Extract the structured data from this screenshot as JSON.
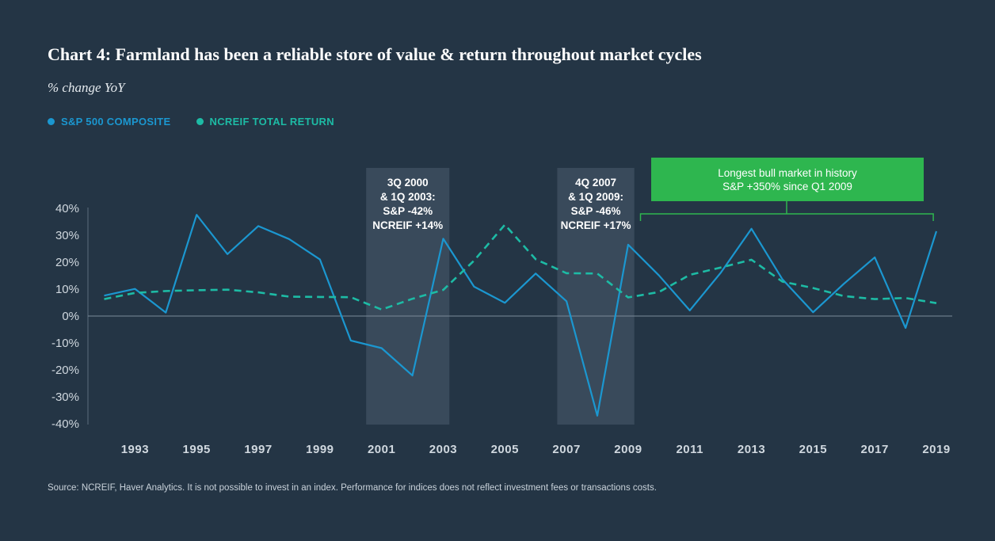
{
  "title": "Chart 4: Farmland has been a reliable store of value & return throughout market cycles",
  "subtitle": "% change YoY",
  "colors": {
    "background": "#243545",
    "sp500": "#1b97d0",
    "ncreif": "#1dbba5",
    "highlight": "#394a5b",
    "bull": "#2eb64f"
  },
  "source": "Source: NCREIF, Haver Analytics. It is not possible to invest in an index. Performance for indices does not reflect investment fees or transactions costs.",
  "annotations": {
    "dotcom": [
      "3Q 2000",
      "& 1Q 2003:",
      "S&P -42%",
      "NCREIF +14%"
    ],
    "gfc": [
      "4Q 2007",
      "& 1Q 2009:",
      "S&P -46%",
      "NCREIF +17%"
    ],
    "bull": [
      "Longest bull market in history",
      "S&P +350% since Q1 2009"
    ]
  },
  "chart_data": {
    "type": "line",
    "title": "Chart 4: Farmland has been a reliable store of value & return throughout market cycles",
    "ylabel": "% change YoY",
    "ylim": [
      -40,
      40
    ],
    "yticks": [
      "40%",
      "30%",
      "20%",
      "10%",
      "0%",
      "-10%",
      "-20%",
      "-30%",
      "-40%"
    ],
    "ytick_values": [
      40,
      30,
      20,
      10,
      0,
      -10,
      -20,
      -30,
      -40
    ],
    "xlim": [
      1992,
      2019
    ],
    "xtick_labels": [
      "1993",
      "1995",
      "1997",
      "1999",
      "2001",
      "2003",
      "2005",
      "2007",
      "2009",
      "2011",
      "2013",
      "2015",
      "2017",
      "2019"
    ],
    "xtick_values": [
      1993,
      1995,
      1997,
      1999,
      2001,
      2003,
      2005,
      2007,
      2009,
      2011,
      2013,
      2015,
      2017,
      2019
    ],
    "x": [
      1992,
      1993,
      1994,
      1995,
      1996,
      1997,
      1998,
      1999,
      2000,
      2001,
      2002,
      2003,
      2004,
      2005,
      2006,
      2007,
      2008,
      2009,
      2010,
      2011,
      2012,
      2013,
      2014,
      2015,
      2016,
      2017,
      2018,
      2019
    ],
    "series": [
      {
        "name": "S&P 500 COMPOSITE",
        "style": "solid",
        "values": [
          7.6,
          10.1,
          1.3,
          37.6,
          23.0,
          33.4,
          28.6,
          21.0,
          -9.1,
          -11.9,
          -22.1,
          28.7,
          10.9,
          4.9,
          15.8,
          5.5,
          -37.0,
          26.5,
          15.1,
          2.1,
          16.0,
          32.4,
          13.7,
          1.4,
          12.0,
          21.8,
          -4.4,
          31.5
        ]
      },
      {
        "name": "NCREIF TOTAL RETURN",
        "style": "dashed",
        "values": [
          6.3,
          8.6,
          9.3,
          9.6,
          9.8,
          8.8,
          7.2,
          7.1,
          7.0,
          2.4,
          6.4,
          9.7,
          20.6,
          33.9,
          21.1,
          15.9,
          15.8,
          6.9,
          8.9,
          15.3,
          18.0,
          20.9,
          12.8,
          10.4,
          7.4,
          6.3,
          6.7,
          4.8
        ]
      }
    ],
    "shaded_ranges": [
      {
        "label": "dotcom",
        "from": 2000.5,
        "to": 2003.2
      },
      {
        "label": "gfc",
        "from": 2006.7,
        "to": 2009.2
      }
    ],
    "bracket_range": {
      "from": 2009.4,
      "to": 2018.9
    }
  }
}
